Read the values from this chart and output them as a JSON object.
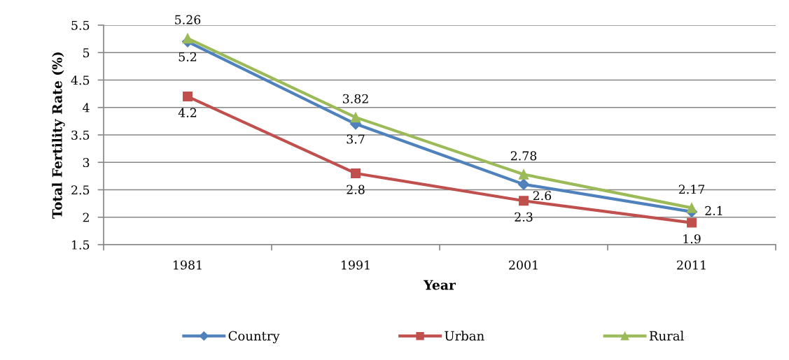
{
  "chart_data": {
    "type": "line",
    "categories": [
      "1981",
      "1991",
      "2001",
      "2011"
    ],
    "xlabel": "Year",
    "ylabel": "Total Fertility Rate (%)",
    "ylim": [
      1.5,
      5.5
    ],
    "yticks": [
      1.5,
      2,
      2.5,
      3,
      3.5,
      4,
      4.5,
      5,
      5.5
    ],
    "grid": "y",
    "legend": "bottom",
    "data_labels": true,
    "line_style": "solid",
    "series": [
      {
        "name": "Country",
        "color": "#4f81bd",
        "marker": "diamond",
        "values": [
          5.2,
          3.7,
          2.6,
          2.1
        ]
      },
      {
        "name": "Urban",
        "color": "#c0504d",
        "marker": "square",
        "values": [
          4.2,
          2.8,
          2.3,
          1.9
        ]
      },
      {
        "name": "Rural",
        "color": "#9bbb59",
        "marker": "triangle",
        "values": [
          5.26,
          3.82,
          2.78,
          2.17
        ]
      }
    ]
  }
}
